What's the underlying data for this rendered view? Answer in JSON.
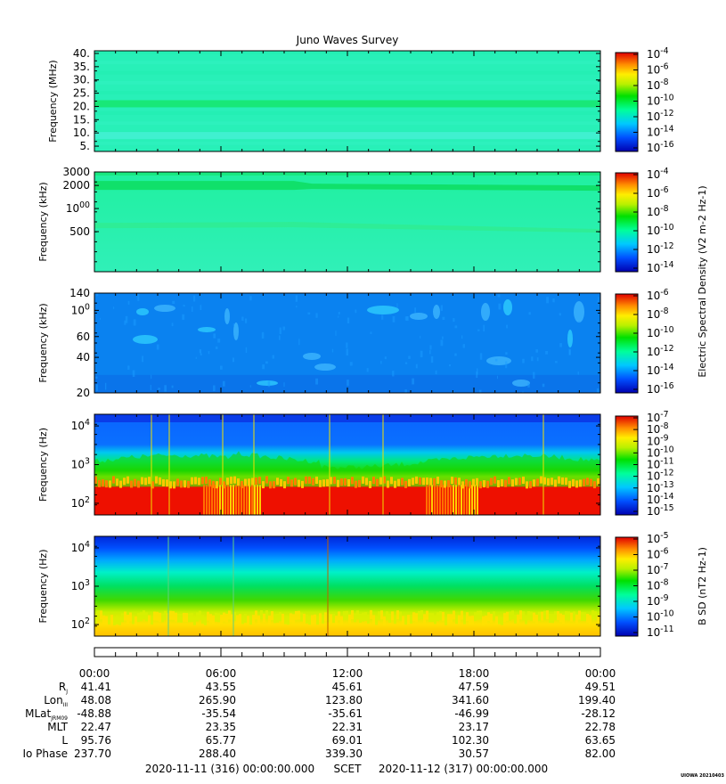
{
  "title": "Juno Waves Survey",
  "chart_data": [
    {
      "type": "heatmap",
      "panel": "hfr-high",
      "ylabel": "Frequency (MHz)",
      "yticks": [
        "40.",
        "35.",
        "30.",
        "25.",
        "20.",
        "15.",
        "10.",
        "5."
      ],
      "yrange": [
        3,
        41
      ],
      "yscale": "linear",
      "bands": [
        {
          "y": 21,
          "level": "green"
        },
        {
          "y": 9,
          "level": "cyan-light"
        }
      ],
      "colorbar": {
        "labels": [
          "10-4",
          "10-6",
          "10-8",
          "10-10",
          "10-12",
          "10-14",
          "10-16"
        ],
        "title": ""
      }
    },
    {
      "type": "heatmap",
      "panel": "hfr-low",
      "ylabel": "Frequency (kHz)",
      "yticks": [
        "3000",
        "2000",
        "1000",
        "500"
      ],
      "yrange": [
        150,
        3000
      ],
      "yscale": "log",
      "bands": [
        {
          "y": 2000,
          "level": "green"
        },
        {
          "y": 600,
          "level": "green-light"
        }
      ],
      "colorbar": {
        "labels": [
          "10-4",
          "10-6",
          "10-8",
          "10-10",
          "10-12",
          "10-14"
        ],
        "title": "Electric Spectral Density (V2 m-2 Hz-1)"
      }
    },
    {
      "type": "heatmap",
      "panel": "lfr-high",
      "ylabel": "Frequency (kHz)",
      "yticks": [
        "140",
        "100",
        "60",
        "40",
        "20"
      ],
      "yrange": [
        20,
        140
      ],
      "yscale": "log",
      "colorbar": {
        "labels": [
          "10-6",
          "10-8",
          "10-10",
          "10-12",
          "10-14",
          "10-16"
        ],
        "title": ""
      }
    },
    {
      "type": "heatmap",
      "panel": "lfr-e",
      "ylabel": "Frequency (Hz)",
      "yticks": [
        "10^4",
        "10^3",
        "10^2"
      ],
      "yrange": [
        50,
        20000
      ],
      "yscale": "log",
      "colorbar": {
        "labels": [
          "10-7",
          "10-8",
          "10-9",
          "10-10",
          "10-11",
          "10-12",
          "10-13",
          "10-14",
          "10-15"
        ],
        "title": ""
      }
    },
    {
      "type": "heatmap",
      "panel": "lfr-b",
      "ylabel": "Frequency (Hz)",
      "yticks": [
        "10^4",
        "10^3",
        "10^2"
      ],
      "yrange": [
        50,
        20000
      ],
      "yscale": "log",
      "colorbar": {
        "labels": [
          "10-5",
          "10-6",
          "10-7",
          "10-8",
          "10-9",
          "10-10",
          "10-11"
        ],
        "title": "B SD (nT2 Hz-1)"
      }
    }
  ],
  "ephemeris": {
    "time_labels": [
      "00:00",
      "06:00",
      "12:00",
      "18:00",
      "00:00"
    ],
    "rows": [
      {
        "label": "R",
        "sub": "J",
        "values": [
          "41.41",
          "43.55",
          "45.61",
          "47.59",
          "49.51"
        ]
      },
      {
        "label": "Lon",
        "sub": "III",
        "values": [
          "48.08",
          "265.90",
          "123.80",
          "341.60",
          "199.40"
        ]
      },
      {
        "label": "MLat",
        "sub": "JRM09",
        "values": [
          "-48.88",
          "-35.54",
          "-35.61",
          "-46.99",
          "-28.12"
        ]
      },
      {
        "label": "MLT",
        "sub": "",
        "values": [
          "22.47",
          "23.35",
          "22.31",
          "23.17",
          "22.78"
        ]
      },
      {
        "label": "L",
        "sub": "",
        "values": [
          "95.76",
          "65.77",
          "69.01",
          "102.30",
          "63.65"
        ]
      },
      {
        "label": "Io Phase",
        "sub": "",
        "values": [
          "237.70",
          "288.40",
          "339.30",
          "30.57",
          "82.00"
        ]
      }
    ]
  },
  "footer": {
    "start": "2020-11-11 (316) 00:00:00.000",
    "scet": "SCET",
    "end": "2020-11-12 (317) 00:00:00.000"
  },
  "credit": "UIOWA 20210403"
}
